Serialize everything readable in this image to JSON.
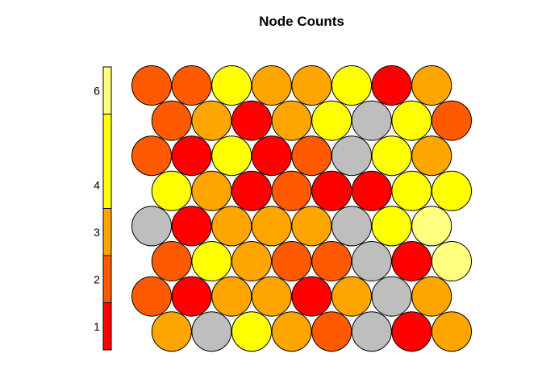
{
  "chart_data": {
    "type": "heatmap",
    "subtype": "hexagonal-som-counts",
    "title": "Node Counts",
    "grid": {
      "columns": 8,
      "rows": 8,
      "topology": "hexagonal",
      "row_order": "top-to-bottom",
      "odd_rows_offset": "right"
    },
    "count_unknown_color": "#bebebe",
    "colorbar": {
      "position": "left",
      "range": [
        0.5,
        6.5
      ],
      "ticks": [
        1,
        2,
        3,
        4,
        6
      ],
      "tick_labels": [
        "1",
        "2",
        "3",
        "4",
        "6"
      ],
      "levels": [
        {
          "value": 1,
          "color": "#ff0000"
        },
        {
          "value": 2,
          "color": "#ff5a00"
        },
        {
          "value": 3,
          "color": "#ffa500"
        },
        {
          "value": 4,
          "color": "#ffff00"
        },
        {
          "value": 5,
          "color": "#ffff00"
        },
        {
          "value": 6,
          "color": "#ffff80"
        }
      ]
    },
    "values": [
      [
        2,
        2,
        4,
        3,
        3,
        4,
        1,
        3
      ],
      [
        2,
        3,
        1,
        3,
        4,
        0,
        4,
        2
      ],
      [
        2,
        1,
        4,
        1,
        2,
        0,
        4,
        3
      ],
      [
        4,
        3,
        1,
        2,
        1,
        1,
        4,
        4
      ],
      [
        0,
        1,
        3,
        3,
        3,
        0,
        4,
        6
      ],
      [
        2,
        4,
        3,
        2,
        2,
        0,
        1,
        6
      ],
      [
        2,
        1,
        3,
        3,
        1,
        3,
        0,
        3
      ],
      [
        3,
        0,
        4,
        3,
        2,
        0,
        1,
        3
      ]
    ]
  }
}
